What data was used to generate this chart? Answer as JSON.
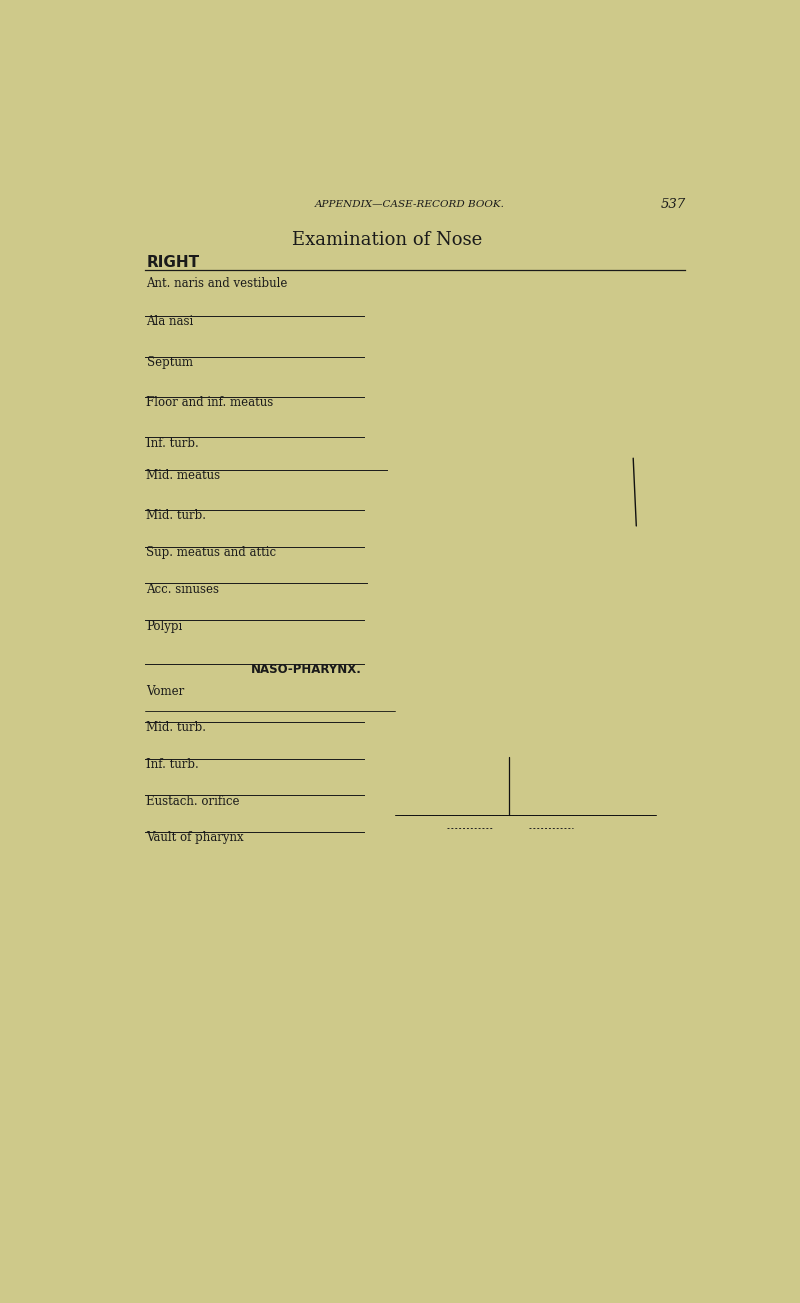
{
  "bg_color": "#cec98a",
  "page_title": "APPENDIX—CASE-RECORD BOOK.",
  "page_number": "537",
  "main_title": "Examination of Nose",
  "section_label": "RIGHT",
  "line_color": "#1a1a1a",
  "text_color": "#1a1a1a",
  "font_size_title": 13,
  "font_size_label": 8.5,
  "font_size_header": 7.5
}
